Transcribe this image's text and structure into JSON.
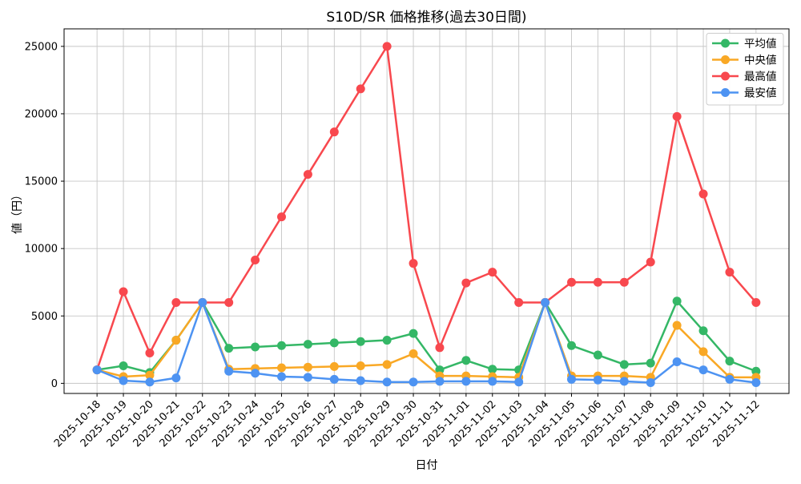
{
  "chart_data": {
    "type": "line",
    "title": "S10D/SR 価格推移(過去30日間)",
    "xlabel": "日付",
    "ylabel": "値（円）",
    "grid": true,
    "legend_position": "upper right",
    "yticks": [
      0,
      5000,
      10000,
      15000,
      20000,
      25000
    ],
    "ylim": [
      -750,
      26300
    ],
    "categories": [
      "2025-10-18",
      "2025-10-19",
      "2025-10-20",
      "2025-10-21",
      "2025-10-22",
      "2025-10-23",
      "2025-10-24",
      "2025-10-25",
      "2025-10-26",
      "2025-10-27",
      "2025-10-28",
      "2025-10-29",
      "2025-10-30",
      "2025-10-31",
      "2025-11-01",
      "2025-11-02",
      "2025-11-03",
      "2025-11-04",
      "2025-11-05",
      "2025-11-06",
      "2025-11-07",
      "2025-11-08",
      "2025-11-09",
      "2025-11-10",
      "2025-11-11",
      "2025-11-12"
    ],
    "series": [
      {
        "name": "平均値",
        "color": "#34b766",
        "values": [
          1000,
          1300,
          800,
          3200,
          6000,
          2600,
          2700,
          2800,
          2900,
          3000,
          3100,
          3200,
          3700,
          1000,
          1700,
          1050,
          1000,
          6000,
          2800,
          2100,
          1400,
          1500,
          6100,
          3900,
          1650,
          900
        ]
      },
      {
        "name": "中央値",
        "color": "#f9a825",
        "values": [
          1000,
          500,
          600,
          3200,
          6000,
          1050,
          1100,
          1150,
          1200,
          1250,
          1300,
          1400,
          2200,
          550,
          550,
          500,
          450,
          6000,
          550,
          550,
          550,
          450,
          4300,
          2350,
          450,
          450
        ]
      },
      {
        "name": "最高値",
        "color": "#f8484e",
        "values": [
          1000,
          6800,
          2250,
          6000,
          6000,
          6000,
          9150,
          12350,
          15500,
          18650,
          21850,
          25000,
          8900,
          2650,
          7450,
          8250,
          6000,
          6000,
          7500,
          7500,
          7500,
          9000,
          19800,
          14050,
          8250,
          6000
        ]
      },
      {
        "name": "最安値",
        "color": "#4d93f2",
        "values": [
          1000,
          200,
          100,
          400,
          6000,
          900,
          750,
          500,
          450,
          300,
          200,
          100,
          100,
          150,
          150,
          150,
          100,
          6000,
          300,
          250,
          150,
          50,
          1600,
          1000,
          300,
          50
        ]
      }
    ]
  }
}
